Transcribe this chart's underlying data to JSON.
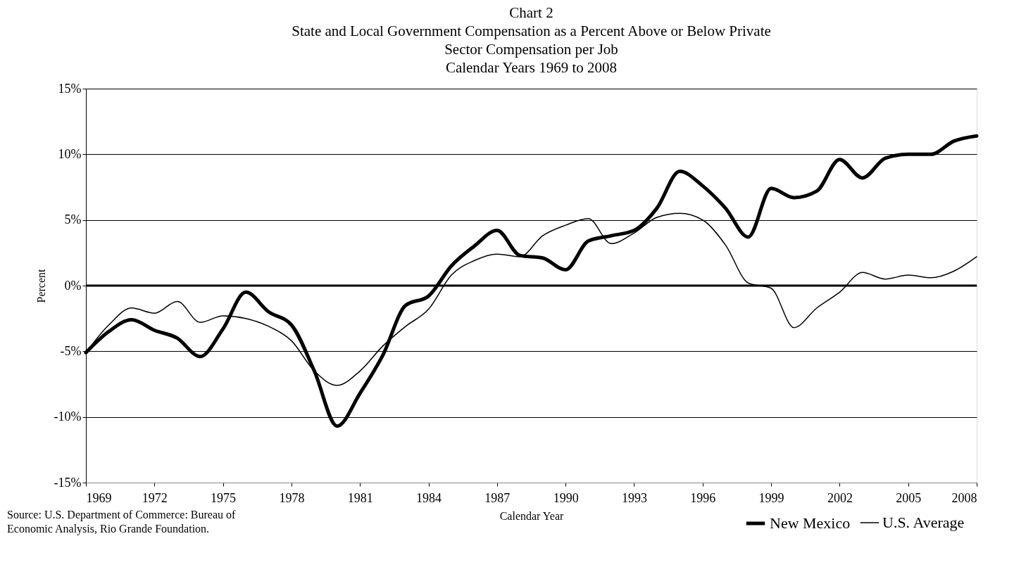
{
  "chart_data": {
    "type": "line",
    "title": "Chart 2",
    "subtitle": "State and Local Government Compensation as a Percent Above or Below Private\nSector Compensation per Job\nCalendar Years 1969 to 2008",
    "xlabel": "Calendar Year",
    "ylabel": "Percent",
    "x": [
      1969,
      1970,
      1971,
      1972,
      1973,
      1974,
      1975,
      1976,
      1977,
      1978,
      1979,
      1980,
      1981,
      1982,
      1983,
      1984,
      1985,
      1986,
      1987,
      1988,
      1989,
      1990,
      1991,
      1992,
      1993,
      1994,
      1995,
      1996,
      1997,
      1998,
      1999,
      2000,
      2001,
      2002,
      2003,
      2004,
      2005,
      2006,
      2007,
      2008
    ],
    "series": [
      {
        "name": "New Mexico",
        "color": "#000000",
        "values": [
          -5.1,
          -3.5,
          -2.6,
          -3.4,
          -4.0,
          -5.4,
          -3.3,
          -0.5,
          -2.0,
          -3.0,
          -6.5,
          -10.7,
          -8.2,
          -5.3,
          -1.5,
          -0.8,
          1.5,
          3.0,
          4.2,
          2.3,
          2.1,
          1.2,
          3.4,
          3.8,
          4.2,
          5.9,
          8.7,
          7.6,
          5.9,
          3.7,
          7.4,
          6.7,
          7.2,
          9.6,
          8.2,
          9.7,
          10.0,
          10.0,
          11.0,
          11.4
        ]
      },
      {
        "name": "U.S. Average",
        "color": "#000000",
        "values": [
          -5.1,
          -3.0,
          -1.7,
          -2.1,
          -1.2,
          -2.8,
          -2.3,
          -2.5,
          -3.1,
          -4.2,
          -6.5,
          -7.6,
          -6.5,
          -4.6,
          -3.1,
          -1.8,
          0.8,
          1.9,
          2.4,
          2.2,
          3.8,
          4.6,
          5.1,
          3.2,
          4.0,
          5.2,
          5.5,
          5.0,
          3.1,
          0.2,
          -0.2,
          -3.2,
          -1.7,
          -0.5,
          1.0,
          0.5,
          0.8,
          0.6,
          1.1,
          2.2
        ]
      }
    ],
    "xlim": [
      1969,
      2008
    ],
    "xticks": [
      1969,
      1972,
      1975,
      1978,
      1981,
      1984,
      1987,
      1990,
      1993,
      1996,
      1999,
      2002,
      2005,
      2008
    ],
    "ylim": [
      -15,
      15
    ],
    "yticks": [
      {
        "value": -15,
        "label": "-15%"
      },
      {
        "value": -10,
        "label": "-10%"
      },
      {
        "value": -5,
        "label": "-5%"
      },
      {
        "value": 0,
        "label": "0%"
      },
      {
        "value": 5,
        "label": "5%"
      },
      {
        "value": 10,
        "label": "10%"
      },
      {
        "value": 15,
        "label": "15%"
      }
    ],
    "ref_lines": [
      {
        "axis": "y",
        "value": 0,
        "color": "#000000"
      }
    ],
    "grid": "y",
    "legend": "bottom right",
    "marker": "none",
    "line_style": "solid",
    "annotations": [
      "Source: U.S. Department of Commerce: Bureau of Economic Analysis, Rio Grande Foundation."
    ]
  }
}
